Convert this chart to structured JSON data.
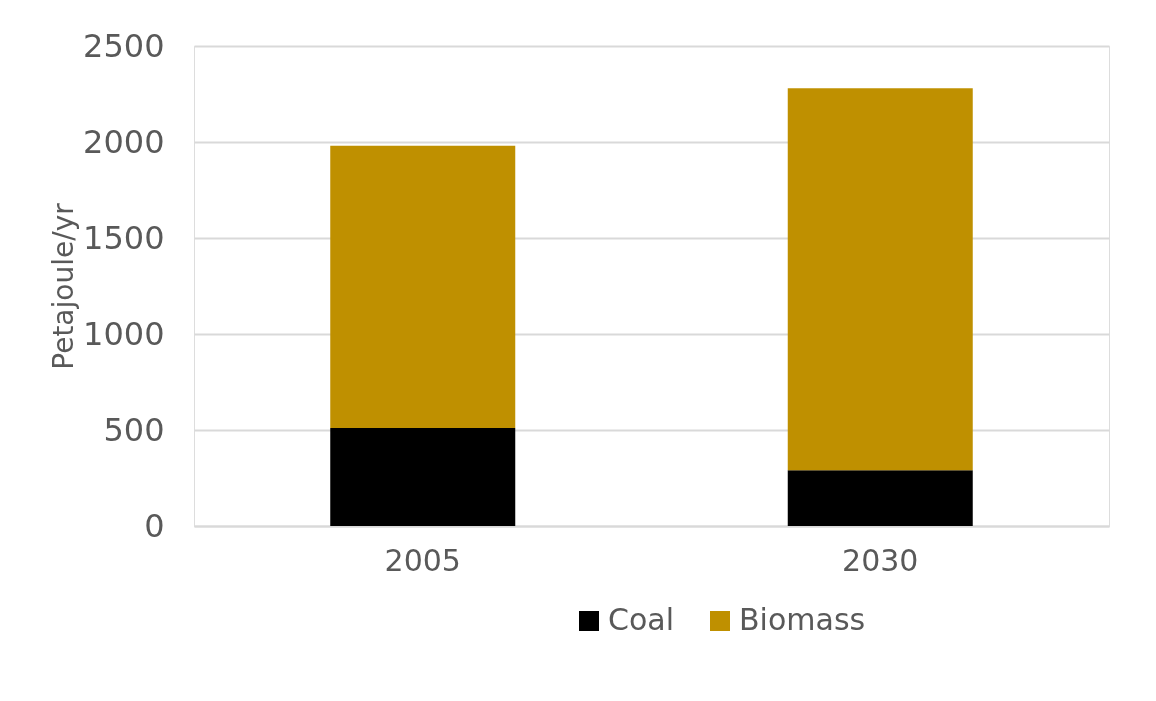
{
  "chart_data": {
    "type": "bar",
    "stacked": true,
    "ylabel": "Petajoule/yr",
    "categories": [
      "2005",
      "2030"
    ],
    "series": [
      {
        "name": "Coal",
        "color": "#000000",
        "values": [
          510,
          290
        ]
      },
      {
        "name": "Biomass",
        "color": "#bf9000",
        "values": [
          1470,
          1990
        ]
      }
    ],
    "ylim": [
      0,
      2500
    ],
    "yticks": [
      0,
      500,
      1000,
      1500,
      2000,
      2500
    ],
    "grid": "y",
    "legend": "bottom"
  }
}
